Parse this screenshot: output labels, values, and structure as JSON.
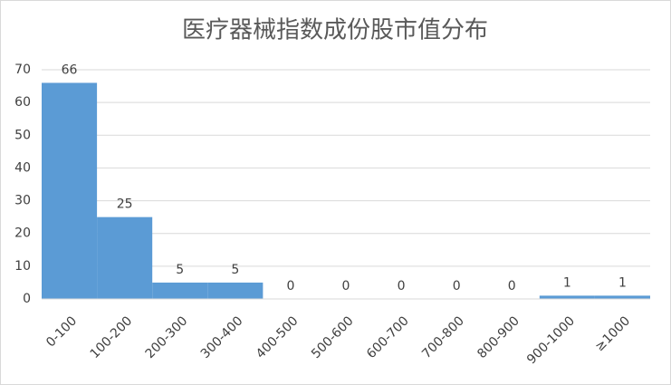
{
  "chart_data": {
    "type": "bar",
    "title": "医疗器械指数成份股市值分布",
    "categories": [
      "0-100",
      "100-200",
      "200-300",
      "300-400",
      "400-500",
      "500-600",
      "600-700",
      "700-800",
      "800-900",
      "900-1000",
      "≥1000"
    ],
    "values": [
      66,
      25,
      5,
      5,
      0,
      0,
      0,
      0,
      0,
      1,
      1
    ],
    "color": "#5b9bd5",
    "ylim": [
      0,
      70
    ],
    "yticks": [
      0,
      10,
      20,
      30,
      40,
      50,
      60,
      70
    ],
    "grid": true
  }
}
